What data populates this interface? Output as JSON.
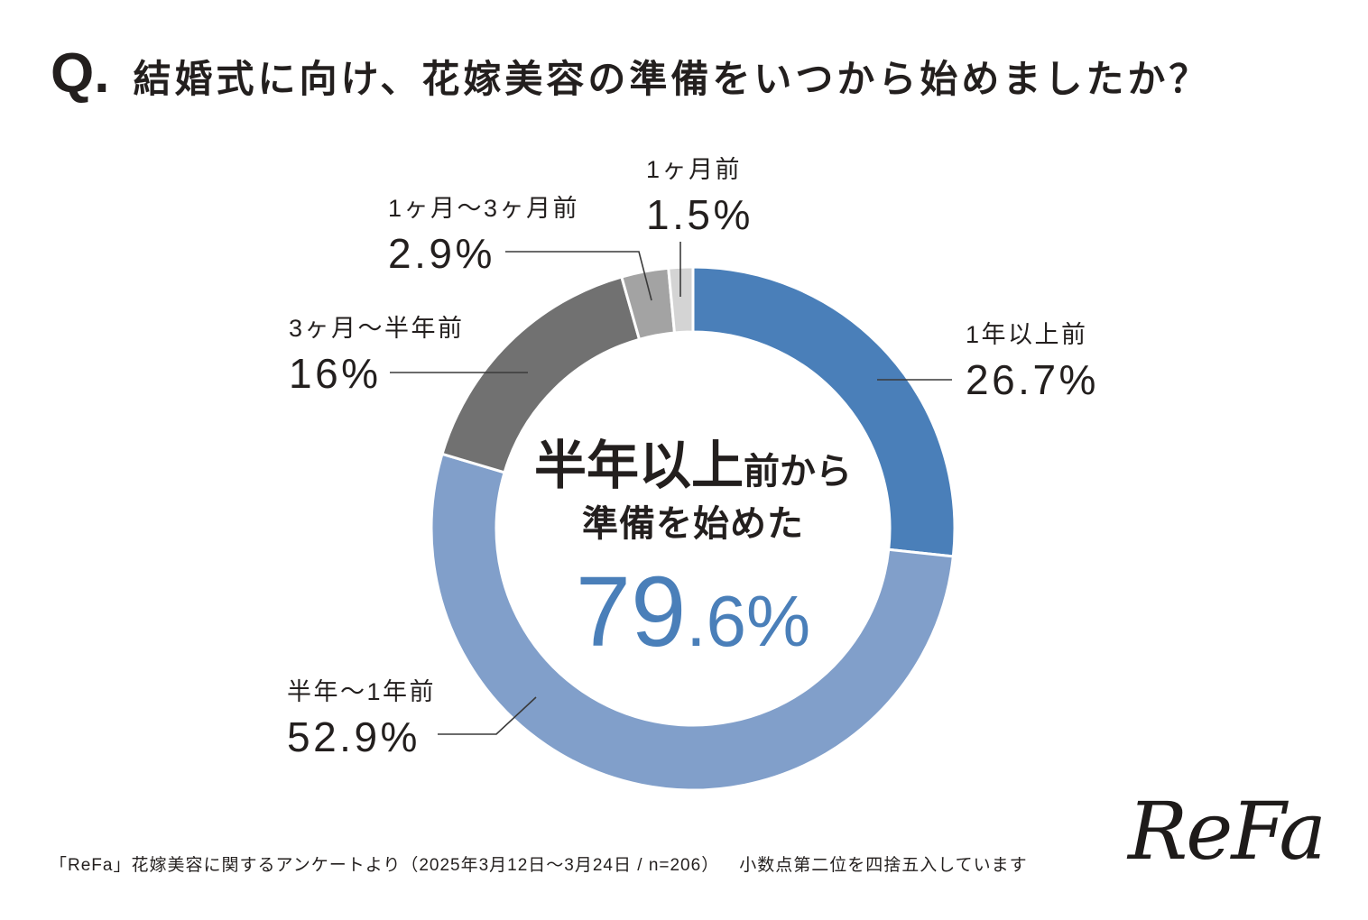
{
  "chart_data": {
    "type": "pie",
    "donut": true,
    "title_prefix": "Q.",
    "title": "結婚式に向け、花嫁美容の準備をいつから始めましたか？",
    "slices": [
      {
        "label": "1年以上前",
        "value": 26.7,
        "display": "26.7%",
        "color": "#4a7fb9"
      },
      {
        "label": "半年〜1年前",
        "value": 52.9,
        "display": "52.9%",
        "color": "#819fca"
      },
      {
        "label": "3ヶ月〜半年前",
        "value": 16,
        "display": "16%",
        "color": "#717171"
      },
      {
        "label": "1ヶ月〜3ヶ月前",
        "value": 2.9,
        "display": "2.9%",
        "color": "#a3a3a3"
      },
      {
        "label": "1ヶ月前",
        "value": 1.5,
        "display": "1.5%",
        "color": "#d4d4d4"
      }
    ]
  },
  "center_text": {
    "line1_emphasis": "半年以上",
    "line1_rest": "前から",
    "line2": "準備を始めた",
    "value_main": "79",
    "value_rest": ".6%",
    "value_color": "#4a7fb9"
  },
  "footer": {
    "source": "「ReFa」花嫁美容に関するアンケートより（2025年3月12日〜3月24日 / n=206）",
    "rounding_note": "小数点第二位を四捨五入しています"
  },
  "logo": {
    "text": "ReFa"
  }
}
